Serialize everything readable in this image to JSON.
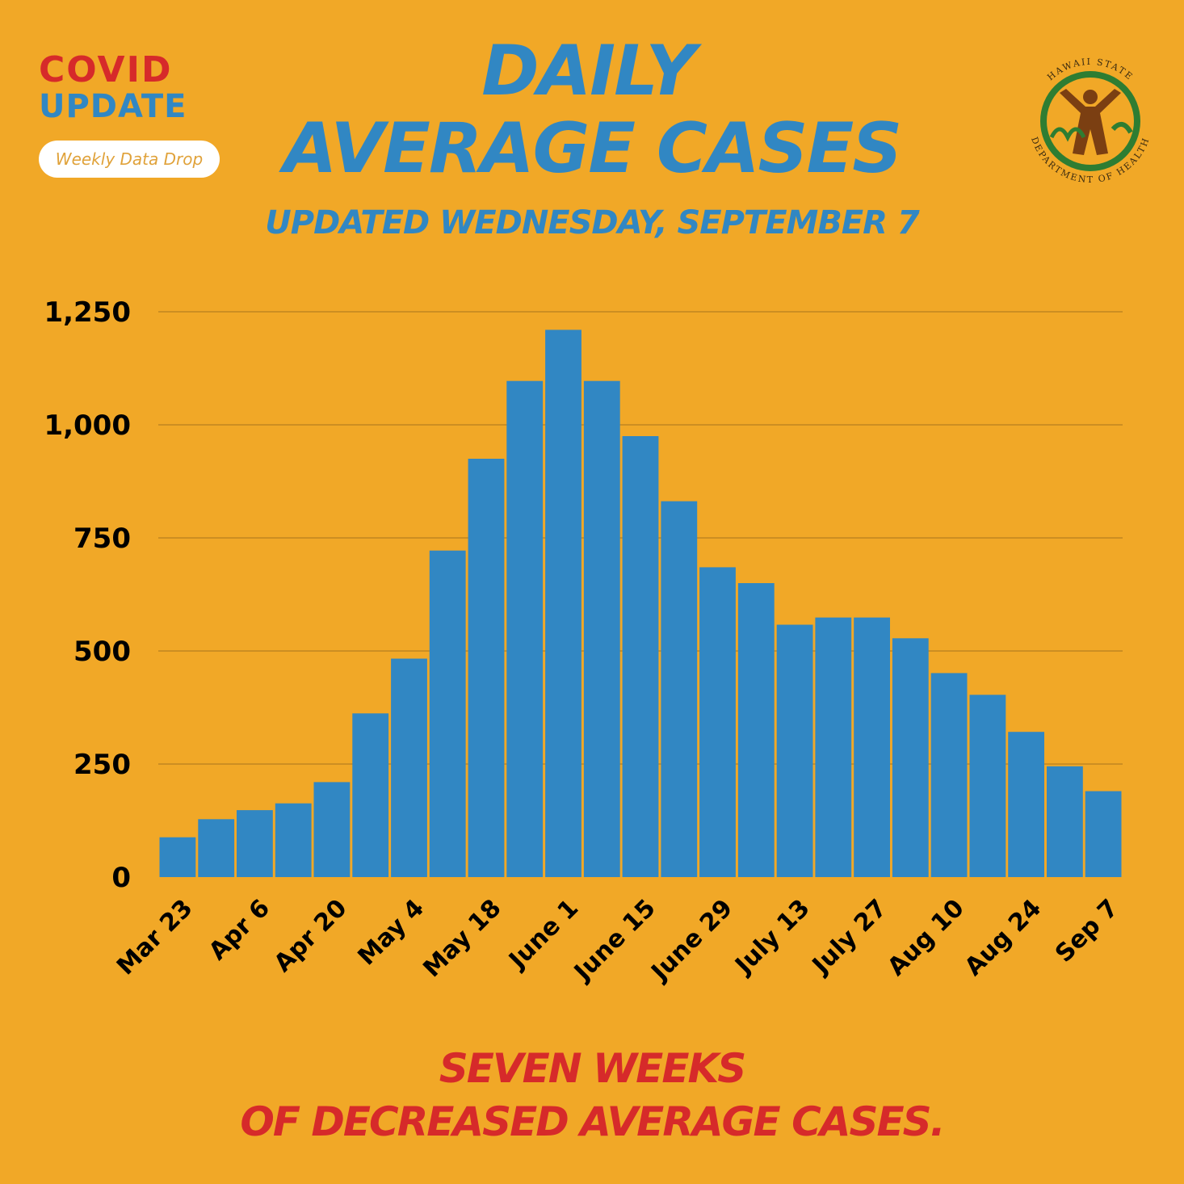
{
  "logo": {
    "covid_text": "COVID",
    "update_text": "UPDATE",
    "pill_text": "Weekly Data Drop"
  },
  "seal": {
    "top_text": "HAWAII STATE",
    "bottom_text": "DEPARTMENT OF HEALTH"
  },
  "header": {
    "title_line1": "DAILY",
    "title_line2": "AVERAGE CASES",
    "subtitle": "UPDATED WEDNESDAY, SEPTEMBER 7"
  },
  "footer": {
    "line1": "SEVEN WEEKS",
    "line2": "OF DECREASED AVERAGE CASES."
  },
  "colors": {
    "background": "#F1A827",
    "bar": "#3187C3",
    "title": "#3187C3",
    "footer": "#D62A2A",
    "gridline": "#A8741C"
  },
  "chart_data": {
    "type": "bar",
    "title": "DAILY AVERAGE CASES",
    "xlabel": "",
    "ylabel": "",
    "ylim": [
      0,
      1250
    ],
    "yticks": [
      0,
      250,
      500,
      750,
      1000,
      1250
    ],
    "ytick_labels": [
      "0",
      "250",
      "500",
      "750",
      "1,000",
      "1,250"
    ],
    "xtick_labels": [
      "Mar 23",
      "Apr 6",
      "Apr 20",
      "May 4",
      "May 18",
      "June 1",
      "June 15",
      "June 29",
      "July 13",
      "July 27",
      "Aug 10",
      "Aug 24",
      "Sep 7"
    ],
    "xtick_bar_index": [
      0,
      2,
      4,
      6,
      8,
      10,
      12,
      14,
      16,
      18,
      20,
      22,
      24
    ],
    "values": [
      88,
      128,
      148,
      163,
      210,
      362,
      483,
      722,
      925,
      1097,
      1210,
      1097,
      975,
      831,
      685,
      650,
      558,
      574,
      574,
      528,
      451,
      403,
      321,
      245,
      190
    ],
    "grid": true,
    "legend": "none"
  }
}
